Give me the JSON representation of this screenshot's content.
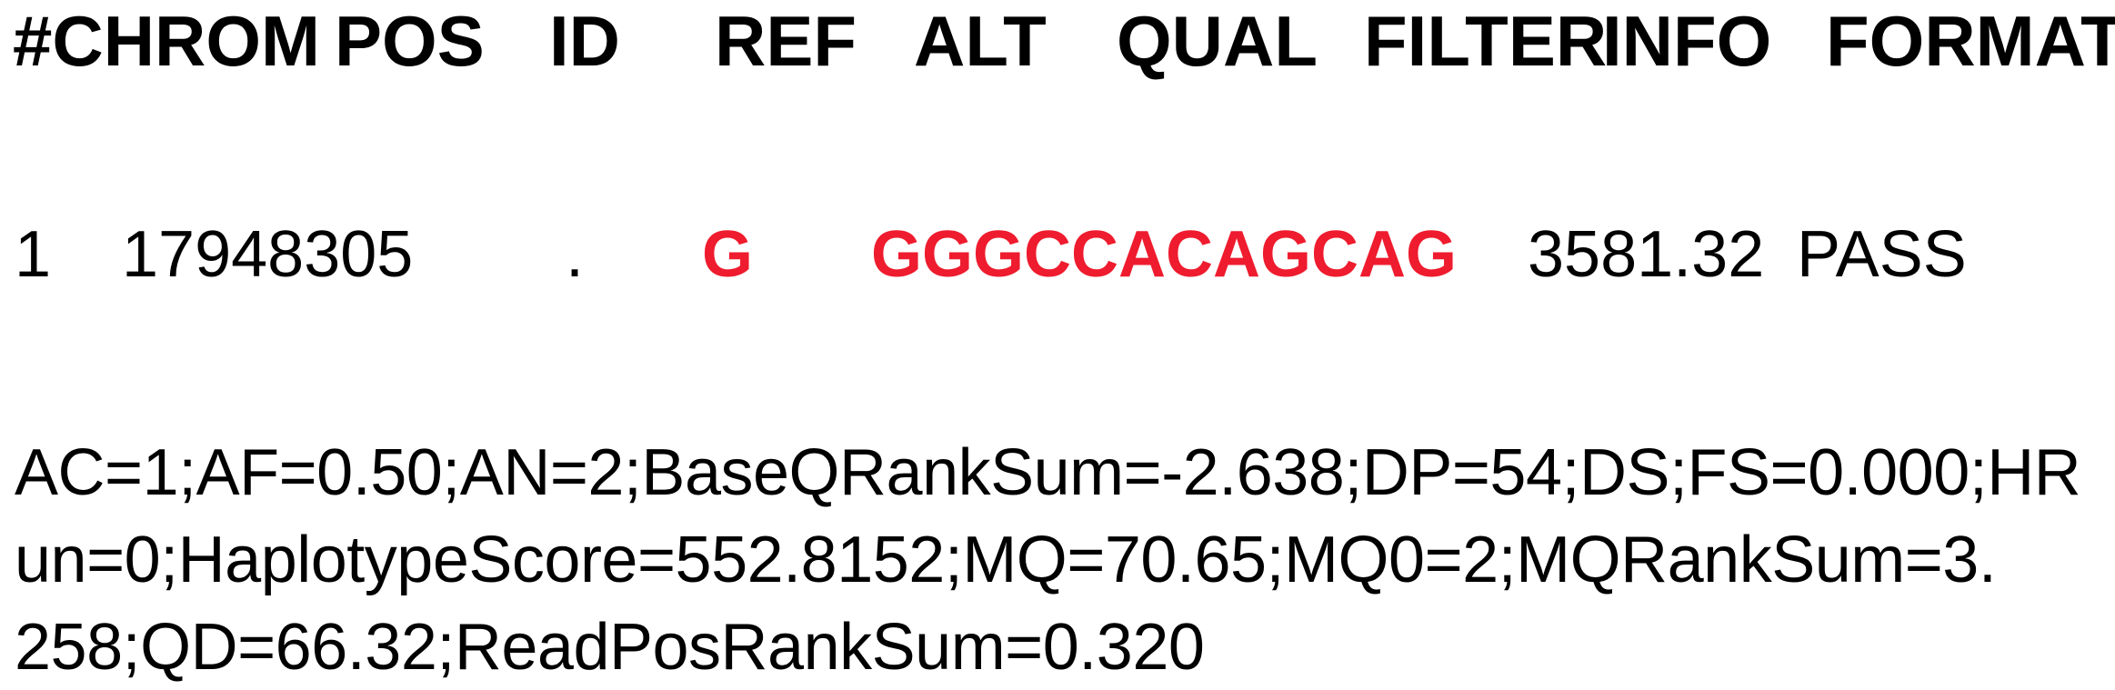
{
  "header": {
    "chrom": "#CHROM",
    "pos": "POS",
    "id": "ID",
    "ref": "REF",
    "alt": "ALT",
    "qual": "QUAL",
    "filter": "FILTER",
    "info": "INFO",
    "format": "FORMAT"
  },
  "record": {
    "chrom": "1",
    "pos": "17948305",
    "id": ".",
    "ref": "G",
    "alt": "GGGCCACAGCAG",
    "qual": "3581.32",
    "filter": "PASS",
    "info_lines": [
      "AC=1;AF=0.50;AN=2;BaseQRankSum=-2.638;DP=54;DS;FS=0.000;HR",
      "un=0;HaplotypeScore=552.8152;MQ=70.65;MQ0=2;MQRankSum=3.",
      "258;QD=66.32;ReadPosRankSum=0.320"
    ]
  },
  "colors": {
    "highlight": "#ee1c2e",
    "text": "#000000",
    "background": "#ffffff"
  }
}
